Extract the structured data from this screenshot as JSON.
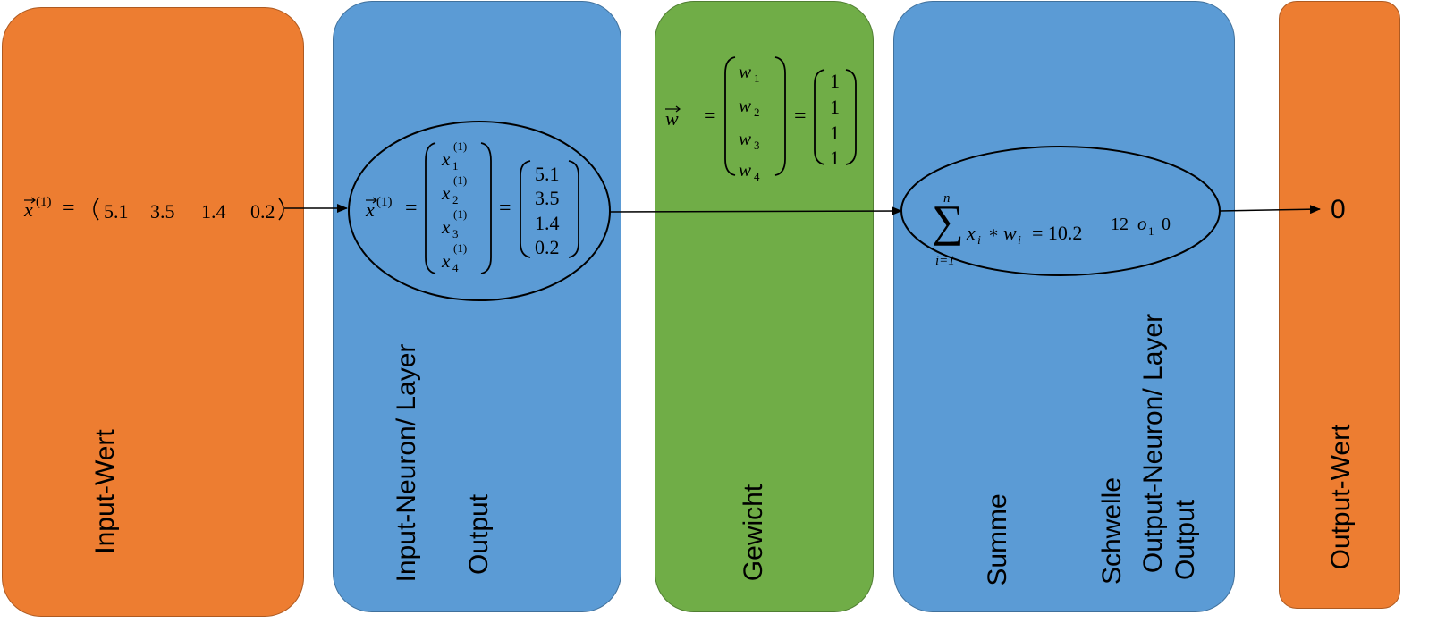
{
  "panels": {
    "input_value": {
      "label": "Input-Wert"
    },
    "input_neuron": {
      "label": "Input-Neuron/ Layer",
      "label2": "Output"
    },
    "weight": {
      "label": "Gewicht"
    },
    "output_neuron": {
      "label_sum": "Summe",
      "label_threshold": "Schwelle",
      "label_neuron": "Output-Neuron/ Layer",
      "label_output": "Output"
    },
    "output_value": {
      "label": "Output-Wert",
      "value": "0"
    }
  },
  "input_vector": {
    "symbol": "x",
    "superscript": "(1)",
    "values": [
      "5.1",
      "3.5",
      "1.4",
      "0.2"
    ]
  },
  "neuron_vector": {
    "symbol": "x",
    "superscript": "(1)",
    "components": [
      "x",
      "x",
      "x",
      "x"
    ],
    "component_subscripts": [
      "1",
      "2",
      "3",
      "4"
    ],
    "component_superscript": "(1)",
    "values": [
      "5.1",
      "3.5",
      "1.4",
      "0.2"
    ]
  },
  "weight_vector": {
    "symbol": "w",
    "components": [
      "w",
      "w",
      "w",
      "w"
    ],
    "component_subscripts": [
      "1",
      "2",
      "3",
      "4"
    ],
    "values": [
      "1",
      "1",
      "1",
      "1"
    ]
  },
  "sum_formula": {
    "upper": "n",
    "lower": "i=1",
    "term": "x",
    "term_sub": "i",
    "times": "∗",
    "term2": "w",
    "term2_sub": "i",
    "result": "= 10.2",
    "threshold": "12",
    "output_symbol": "o",
    "output_sub": "1",
    "output_value": "0"
  },
  "colors": {
    "orange": "#ed7d31",
    "blue": "#5b9bd5",
    "green": "#70ad47"
  }
}
